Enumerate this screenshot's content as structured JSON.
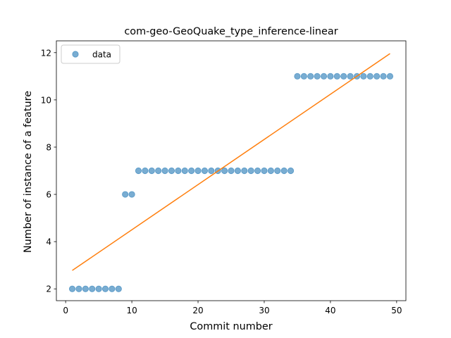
{
  "chart_data": {
    "type": "scatter",
    "title": "com-geo-GeoQuake_type_inference-linear",
    "xlabel": "Commit number",
    "ylabel": "Number of instance of a feature",
    "xlim": [
      -1.4,
      51.4
    ],
    "ylim": [
      1.5,
      12.5
    ],
    "xticks": [
      0,
      10,
      20,
      30,
      40,
      50
    ],
    "yticks": [
      2,
      4,
      6,
      8,
      10,
      12
    ],
    "legend": {
      "position": "upper-left",
      "entries": [
        "data"
      ]
    },
    "series": [
      {
        "name": "data",
        "kind": "points",
        "color": "#1f77b4",
        "x": [
          1,
          2,
          3,
          4,
          5,
          6,
          7,
          8,
          9,
          10,
          11,
          12,
          13,
          14,
          15,
          16,
          17,
          18,
          19,
          20,
          21,
          22,
          23,
          24,
          25,
          26,
          27,
          28,
          29,
          30,
          31,
          32,
          33,
          34,
          35,
          36,
          37,
          38,
          39,
          40,
          41,
          42,
          43,
          44,
          45,
          46,
          47,
          48,
          49
        ],
        "y": [
          2,
          2,
          2,
          2,
          2,
          2,
          2,
          2,
          6,
          6,
          7,
          7,
          7,
          7,
          7,
          7,
          7,
          7,
          7,
          7,
          7,
          7,
          7,
          7,
          7,
          7,
          7,
          7,
          7,
          7,
          7,
          7,
          7,
          7,
          11,
          11,
          11,
          11,
          11,
          11,
          11,
          11,
          11,
          11,
          11,
          11,
          11,
          11,
          11
        ]
      },
      {
        "kind": "line",
        "color": "#ff7f0e",
        "x": [
          1,
          49
        ],
        "y": [
          2.78,
          11.96
        ]
      }
    ]
  }
}
